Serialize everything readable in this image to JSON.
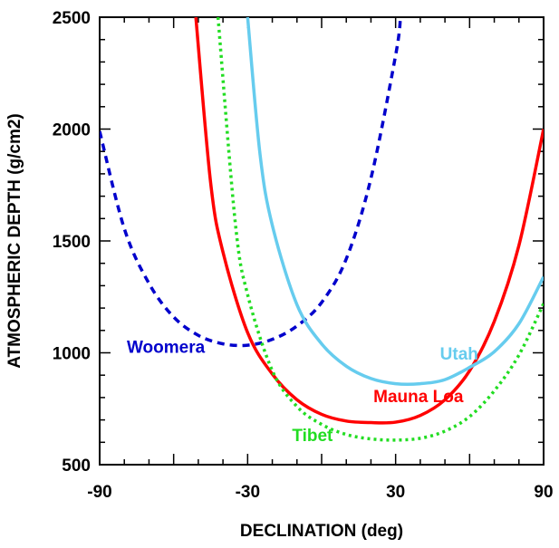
{
  "chart_data": {
    "type": "line",
    "title": "",
    "xlabel": "DECLINATION (deg)",
    "ylabel": "ATMOSPHERIC DEPTH (g/cm2)",
    "xlim": [
      -90,
      90
    ],
    "ylim": [
      500,
      2500
    ],
    "xticks": [
      -90,
      -30,
      30,
      90
    ],
    "yticks": [
      500,
      1000,
      1500,
      2000,
      2500
    ],
    "grid": false,
    "legend": "none",
    "series": [
      {
        "name": "Woomera",
        "color": "#0000cc",
        "style": "dashed",
        "x": [
          -90,
          -80,
          -70,
          -60,
          -50,
          -40,
          -30,
          -20,
          -10,
          0,
          10,
          20,
          30,
          32
        ],
        "y": [
          1990,
          1555,
          1310,
          1160,
          1078,
          1040,
          1034,
          1060,
          1120,
          1225,
          1420,
          1780,
          2330,
          2500
        ]
      },
      {
        "name": "Mauna Loa",
        "color": "#ff0000",
        "style": "solid",
        "x": [
          -51,
          -45,
          -40,
          -30,
          -20,
          -10,
          0,
          10,
          20,
          30,
          40,
          50,
          60,
          70,
          80,
          90
        ],
        "y": [
          2500,
          1760,
          1450,
          1090,
          905,
          790,
          725,
          695,
          688,
          690,
          720,
          790,
          920,
          1140,
          1480,
          2000
        ]
      },
      {
        "name": "Utah",
        "color": "#66ccee",
        "style": "solid",
        "x": [
          -30,
          -25,
          -20,
          -10,
          0,
          10,
          20,
          30,
          40,
          50,
          60,
          70,
          80,
          90
        ],
        "y": [
          2500,
          1890,
          1570,
          1215,
          1040,
          940,
          885,
          862,
          862,
          880,
          935,
          1005,
          1130,
          1340
        ]
      },
      {
        "name": "Tibet",
        "color": "#22dd22",
        "style": "dotted",
        "x": [
          -42,
          -35,
          -30,
          -20,
          -10,
          0,
          10,
          20,
          30,
          40,
          50,
          60,
          70,
          80,
          90
        ],
        "y": [
          2500,
          1580,
          1260,
          920,
          760,
          680,
          635,
          615,
          610,
          618,
          650,
          715,
          830,
          990,
          1220
        ]
      }
    ],
    "annotations": [
      {
        "text": "Woomera",
        "color": "#0000cc",
        "x": -79,
        "y": 1000
      },
      {
        "text": "Utah",
        "color": "#66ccee",
        "x": 48,
        "y": 970
      },
      {
        "text": "Mauna Loa",
        "color": "#ff0000",
        "x": 21,
        "y": 780
      },
      {
        "text": "Tibet",
        "color": "#22dd22",
        "x": -12,
        "y": 605
      }
    ]
  }
}
